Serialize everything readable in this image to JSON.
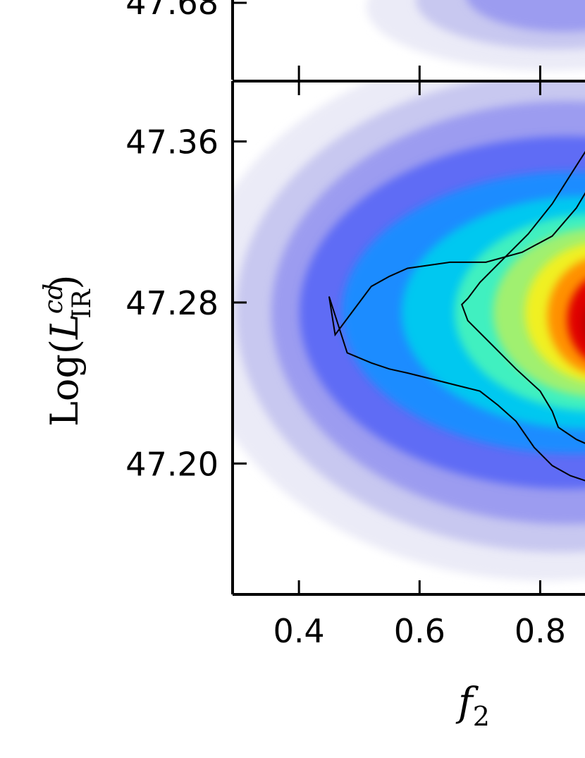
{
  "chart_data": [
    {
      "type": "heatmap",
      "panel": "upper (partially visible)",
      "ytick_labels": [
        "47.68"
      ],
      "x_tick_values": [
        0.4,
        0.6,
        0.8
      ]
    },
    {
      "type": "heatmap",
      "panel": "lower",
      "xlabel": "f",
      "xlabel_subscript": "2",
      "ylabel_text": "Log(",
      "ylabel_var": "L",
      "ylabel_sup": "cd",
      "ylabel_sub": "IR",
      "ylabel_close": ")",
      "xlim": [
        0.29,
        0.9
      ],
      "ylim": [
        47.135,
        47.39
      ],
      "xticks": [
        0.4,
        0.6,
        0.8
      ],
      "xtick_labels": [
        "0.4",
        "0.6",
        "0.8"
      ],
      "yticks": [
        47.2,
        47.28,
        47.36
      ],
      "ytick_labels": [
        "47.20",
        "47.28",
        "47.36"
      ],
      "density_peak": {
        "x": 0.88,
        "y": 47.275
      },
      "contour_inner": [
        [
          0.89,
          47.362
        ],
        [
          0.86,
          47.348
        ],
        [
          0.82,
          47.329
        ],
        [
          0.78,
          47.314
        ],
        [
          0.74,
          47.302
        ],
        [
          0.7,
          47.29
        ],
        [
          0.68,
          47.282
        ],
        [
          0.67,
          47.279
        ],
        [
          0.68,
          47.271
        ],
        [
          0.72,
          47.259
        ],
        [
          0.76,
          47.247
        ],
        [
          0.8,
          47.236
        ],
        [
          0.82,
          47.226
        ],
        [
          0.83,
          47.218
        ],
        [
          0.86,
          47.212
        ],
        [
          0.89,
          47.208
        ]
      ],
      "contour_outer": [
        [
          0.89,
          47.342
        ],
        [
          0.86,
          47.327
        ],
        [
          0.82,
          47.313
        ],
        [
          0.77,
          47.305
        ],
        [
          0.71,
          47.3
        ],
        [
          0.65,
          47.3
        ],
        [
          0.58,
          47.297
        ],
        [
          0.55,
          47.293
        ],
        [
          0.52,
          47.288
        ],
        [
          0.49,
          47.276
        ],
        [
          0.46,
          47.264
        ],
        [
          0.45,
          47.283
        ],
        [
          0.48,
          47.255
        ],
        [
          0.52,
          47.25
        ],
        [
          0.55,
          47.247
        ],
        [
          0.58,
          47.245
        ],
        [
          0.62,
          47.242
        ],
        [
          0.66,
          47.239
        ],
        [
          0.7,
          47.236
        ],
        [
          0.73,
          47.229
        ],
        [
          0.76,
          47.221
        ],
        [
          0.79,
          47.208
        ],
        [
          0.82,
          47.199
        ],
        [
          0.85,
          47.194
        ],
        [
          0.89,
          47.19
        ]
      ],
      "colormap": [
        "#ffffff",
        "#ebebf7",
        "#c8c8f0",
        "#9c9cf0",
        "#5f6cf5",
        "#1f8cff",
        "#00c8f0",
        "#40f0c0",
        "#a0f070",
        "#f0f020",
        "#ff9000",
        "#e00000",
        "#b00000"
      ],
      "grid": false
    }
  ]
}
